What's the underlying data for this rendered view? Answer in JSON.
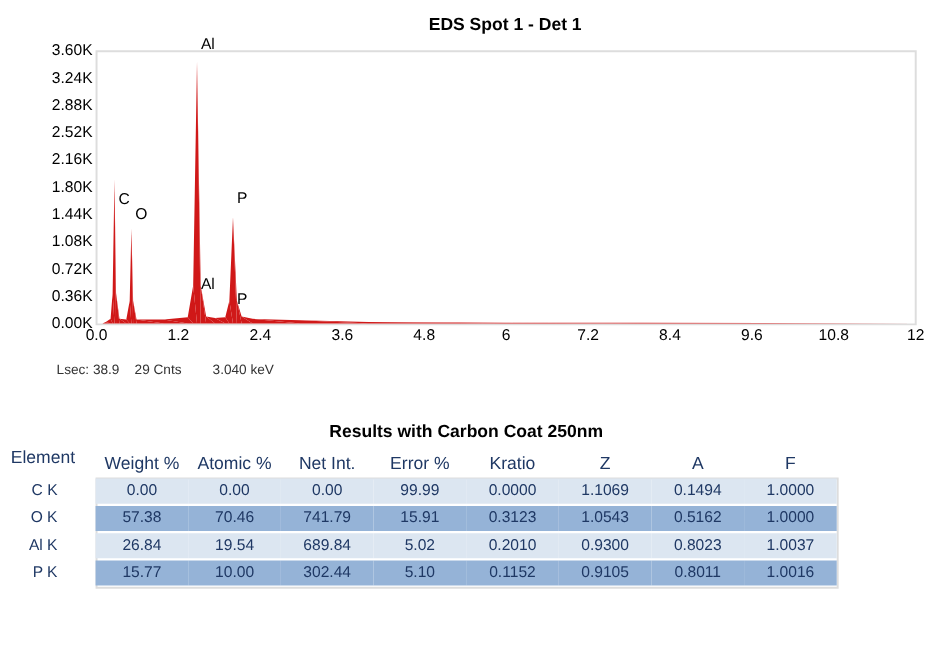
{
  "chart_data": [
    {
      "type": "area",
      "title": "EDS Spot 1 - Det 1",
      "x": [
        0.0,
        0.1,
        0.15,
        0.22,
        0.25,
        0.277,
        0.3,
        0.35,
        0.45,
        0.5,
        0.525,
        0.55,
        0.6,
        1.0,
        1.35,
        1.43,
        1.486,
        1.54,
        1.62,
        1.75,
        1.9,
        1.96,
        2.013,
        2.07,
        2.14,
        2.3,
        3.0,
        4.0,
        6.0,
        8.0,
        12.0
      ],
      "series": [
        {
          "color": "#d01818",
          "values": [
            0,
            0,
            20,
            60,
            400,
            1900,
            400,
            60,
            50,
            300,
            1250,
            300,
            50,
            50,
            80,
            500,
            3450,
            500,
            90,
            70,
            80,
            300,
            1400,
            300,
            90,
            60,
            40,
            20,
            10,
            10,
            0
          ]
        }
      ],
      "xlim": [
        0,
        12
      ],
      "xticks": [
        {
          "value": 0,
          "label": "0.0"
        },
        1.2,
        2.4,
        3.6,
        4.8,
        6.0,
        7.2,
        8.4,
        9.6,
        10.8,
        12
      ],
      "ylim": [
        0,
        3600
      ],
      "yticks": [
        {
          "value": 0,
          "label": "0.00K"
        },
        {
          "value": 360,
          "label": "0.36K"
        },
        {
          "value": 720,
          "label": "0.72K"
        },
        {
          "value": 1080,
          "label": "1.08K"
        },
        {
          "value": 1440,
          "label": "1.44K"
        },
        {
          "value": 1800,
          "label": "1.80K"
        },
        {
          "value": 2160,
          "label": "2.16K"
        },
        {
          "value": 2520,
          "label": "2.52K"
        },
        {
          "value": 2880,
          "label": "2.88K"
        },
        {
          "value": 3240,
          "label": "3.24K"
        },
        {
          "value": 3600,
          "label": "3.60K"
        }
      ],
      "grid": false,
      "annotations": [
        {
          "text": "C",
          "x": 0.277,
          "y": 1520
        },
        {
          "text": "O",
          "x": 0.525,
          "y": 1330
        },
        {
          "text": "Al",
          "x": 1.486,
          "y": 3560
        },
        {
          "text": "P",
          "x": 2.013,
          "y": 1530
        },
        {
          "text": "Al",
          "x": 1.486,
          "y": 400
        },
        {
          "text": "P",
          "x": 2.013,
          "y": 200
        },
        "Lsec: 38.9",
        "29 Cnts",
        "3.040 keV"
      ]
    },
    {
      "type": "heatmap",
      "title": "Results with Carbon Coat 250nm",
      "ylabel": "Element",
      "categories": [
        "Weight %",
        "Atomic %",
        "Net Int.",
        "Error %",
        "Kratio",
        "Z",
        "A",
        "F"
      ],
      "y_categories": [
        "C K",
        "O K",
        "Al K",
        "P K"
      ],
      "colors": [
        "#dce6f1",
        "#95b3d7",
        "#dce6f1",
        "#95b3d7"
      ],
      "cells": [
        [
          0.0,
          0.0,
          0.0,
          99.99,
          0.0,
          1.1069,
          0.1494,
          1.0
        ],
        [
          57.38,
          70.46,
          741.79,
          15.91,
          0.3123,
          1.0543,
          0.5162,
          1.0
        ],
        [
          26.84,
          19.54,
          689.84,
          5.02,
          0.201,
          0.93,
          0.8023,
          1.0037
        ],
        [
          15.77,
          10.0,
          302.44,
          5.1,
          0.1152,
          0.9105,
          0.8011,
          1.0016
        ]
      ],
      "cell_labels": [
        [
          "0.00",
          "0.00",
          "0.00",
          "99.99",
          "0.0000",
          "1.1069",
          "0.1494",
          "1.0000"
        ],
        [
          "57.38",
          "70.46",
          "741.79",
          "15.91",
          "0.3123",
          "1.0543",
          "0.5162",
          "1.0000"
        ],
        [
          "26.84",
          "19.54",
          "689.84",
          "5.02",
          "0.2010",
          "0.9300",
          "0.8023",
          "1.0037"
        ],
        [
          "15.77",
          "10.00",
          "302.44",
          "5.10",
          "0.1152",
          "0.9105",
          "0.8011",
          "1.0016"
        ]
      ]
    }
  ]
}
